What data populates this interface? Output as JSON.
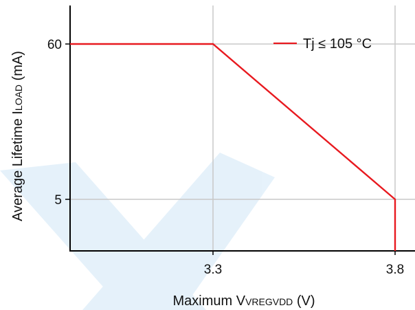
{
  "chart_data": {
    "type": "line",
    "title": "",
    "xlabel": {
      "main": "Maximum V",
      "sub": "VREGVDD",
      "unit": " (V)"
    },
    "ylabel": {
      "main": "Average Lifetime I",
      "sub": "LOAD",
      "unit": " (mA)"
    },
    "x_ticks": [
      {
        "value": 3.3,
        "label": "3.3"
      },
      {
        "value": 3.8,
        "label": "3.8"
      }
    ],
    "y_ticks": [
      {
        "value": 5,
        "label": "5"
      },
      {
        "value": 60,
        "label": "60"
      }
    ],
    "grid": true,
    "legend_position": "top-right",
    "series": [
      {
        "name": "Tj ≤ 105 °C",
        "color": "#e8191f",
        "points": [
          {
            "x": 2.8,
            "y": 60
          },
          {
            "x": 3.3,
            "y": 60
          },
          {
            "x": 3.8,
            "y": 5
          },
          {
            "x": 3.8,
            "y": 0
          }
        ]
      }
    ],
    "watermark_color": "#3f9be0"
  }
}
